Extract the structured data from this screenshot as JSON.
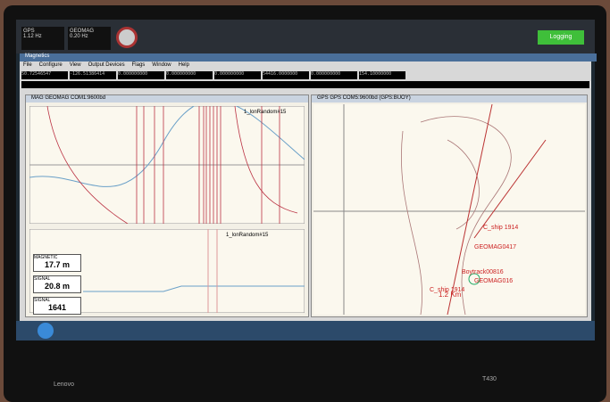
{
  "top_bar": {
    "status": [
      {
        "label": "GPS",
        "rate": "1.12 Hz"
      },
      {
        "label": "GEOMAG",
        "rate": "0.20 Hz"
      }
    ],
    "logging": "Logging"
  },
  "app": {
    "title": "Magnetics",
    "menu": [
      "File",
      "Configure",
      "View",
      "Output Devices",
      "Flags",
      "Window",
      "Help"
    ],
    "fields": [
      "50.72546547",
      "-126.51386414",
      "0.000000000",
      "0.000000000",
      "0.000000000",
      "54416.0000000",
      "0.000000000",
      "154.10000000"
    ]
  },
  "mag_window": {
    "title": "MAG GEOMAG COM1:9600bd",
    "legend_top": "1_lonRandom#15",
    "legend_bottom": "1_lonRandom#15",
    "readouts": [
      {
        "label": "MAGNETIC",
        "value": "17.7 m"
      },
      {
        "label": "SIGNAL",
        "value": "20.8 m"
      },
      {
        "label": "SIGNAL",
        "value": "1641"
      }
    ]
  },
  "gps_window": {
    "title": "GPS GPS COM5:9600bd (GPS:BUOY)",
    "annotations": [
      "C_ship 1914",
      "GEOMAG0417",
      "Boytrack00816",
      "GEOMAG016",
      "C_ship 1914"
    ],
    "scale": "1.2 Km"
  },
  "laptop": {
    "brand": "Lenovo",
    "model": "T430"
  }
}
